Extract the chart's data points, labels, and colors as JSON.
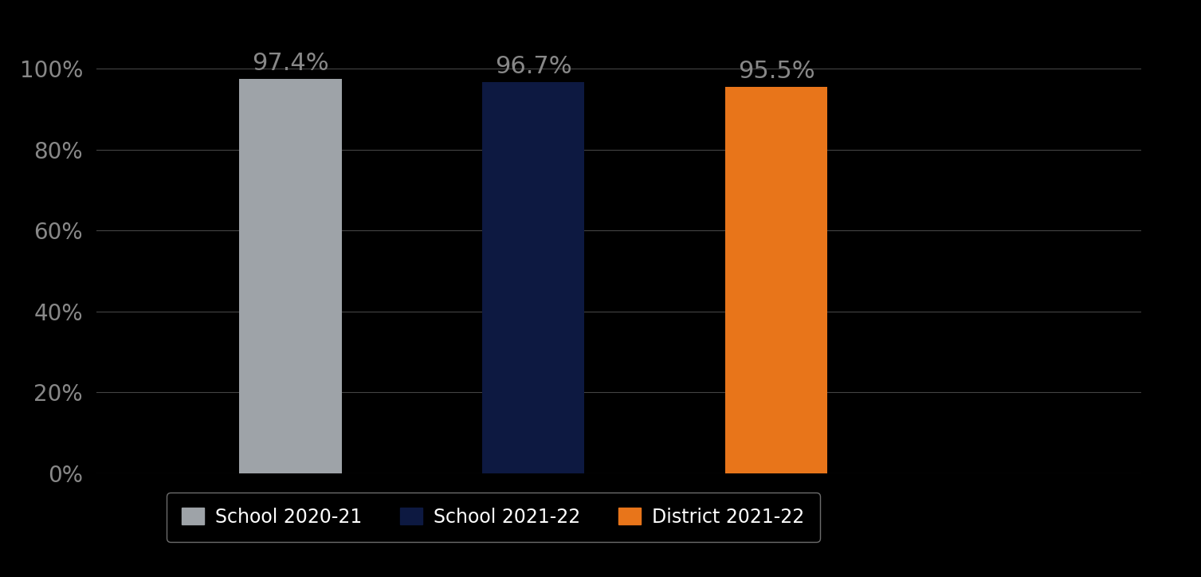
{
  "categories": [
    "School 2020-21",
    "School 2021-22",
    "District 2021-22"
  ],
  "values": [
    97.4,
    96.7,
    95.5
  ],
  "bar_colors": [
    "#9EA3A8",
    "#0D1941",
    "#E8751A"
  ],
  "background_color": "#000000",
  "text_color": "#888888",
  "label_color": "#888888",
  "ylim": [
    0,
    107
  ],
  "yticks": [
    0,
    20,
    40,
    60,
    80,
    100
  ],
  "ytick_labels": [
    "0%",
    "20%",
    "40%",
    "60%",
    "80%",
    "100%"
  ],
  "bar_label_fontsize": 22,
  "tick_fontsize": 20,
  "legend_fontsize": 17,
  "grid_color": "#444444",
  "x_positions": [
    1,
    2,
    3
  ],
  "bar_width": 0.42,
  "xlim": [
    0.2,
    4.5
  ]
}
